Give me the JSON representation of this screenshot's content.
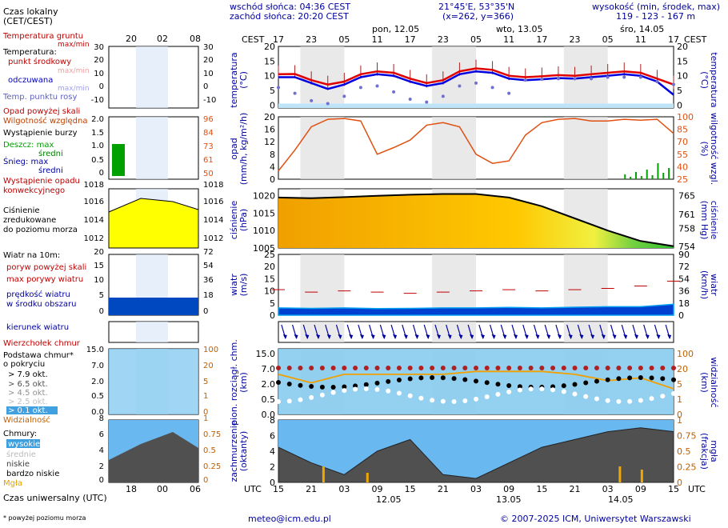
{
  "header": {
    "sunrise": "wschód słońca: 04:36 CEST",
    "sunset": "zachód słońca: 20:20 CEST",
    "coords": "21°45'E, 53°35'N",
    "grid": "(x=262, y=366)",
    "elevation_title": "wysokość (min, środek, max)",
    "elevation_values": "119 - 123 - 167 m",
    "day_labels": [
      "pon, 12.05",
      "wto, 13.05",
      "śro, 14.05"
    ],
    "cest_label": "CEST",
    "cest_hours": [
      "17",
      "23",
      "05",
      "11",
      "17",
      "23",
      "05",
      "11",
      "17",
      "23",
      "05",
      "11",
      "17"
    ],
    "utc_label": "UTC",
    "utc_hours": [
      "15",
      "21",
      "03",
      "09",
      "15",
      "21",
      "03",
      "09",
      "15",
      "21",
      "03",
      "09",
      "15"
    ],
    "bottom_dates": [
      "12.05",
      "13.05",
      "14.05"
    ]
  },
  "legend": {
    "local_time": "Czas lokalny",
    "local_time_sub": "(CET/CEST)",
    "local_hours": [
      "20",
      "02",
      "08"
    ],
    "utc_time": "Czas uniwersalny (UTC)",
    "utc_hours": [
      "18",
      "00",
      "06"
    ],
    "temp": {
      "ground": "Temperatura gruntu",
      "ground_sub": "max/min",
      "title": "Temperatura:",
      "mid": "punkt środkowy",
      "mid_sub": "max/min",
      "felt": "odczuwana",
      "felt_sub": "max/min",
      "dew": "Temp. punktu rosy"
    },
    "precip": {
      "above": "Opad powyżej skali",
      "humidity": "Wilgotność względna",
      "storm": "Wystąpienie burzy",
      "rain": "Deszcz: max",
      "rain_mid": "średni",
      "snow": "Śnieg: max",
      "snow_mid": "średni",
      "occurrence": "Wystąpienie opadu",
      "occurrence2": "konwekcyjnego"
    },
    "pressure": {
      "l1": "Ciśnienie",
      "l2": "zredukowane",
      "l3": "do poziomu morza"
    },
    "wind": {
      "title": "Wiatr na 10m:",
      "gust_above": "poryw powyżej skali",
      "gust_max": "max porywy wiatru",
      "speed": "prędkość wiatru",
      "speed_sub": "w środku obszaru",
      "direction": "kierunek wiatru"
    },
    "clouds": {
      "top": "Wierzchołek chmur",
      "base": "Podstawa chmur*",
      "base_sub": "o pokryciu",
      "okt": [
        "> 7.9 okt.",
        "> 6.5 okt.",
        "> 4.5 okt.",
        "> 2.5 okt.",
        "> 0.1 okt."
      ],
      "visibility": "Widzialność",
      "clouds_title": "Chmury:",
      "high": "wysokie",
      "mid": "średnie",
      "low": "niskie",
      "very_low": "bardzo niskie",
      "fog": "Mgła"
    },
    "footnote": "* powyżej poziomu morza"
  },
  "axis_labels": {
    "temp_left": "temperatura",
    "temp_left_unit": "(°C)",
    "temp_right": "temperatura",
    "temp_right_unit": "(°C)",
    "precip_left": "opad",
    "precip_left_unit": "(mm/h, kg/m²/h)",
    "precip_right": "wilgotność wzgl.",
    "precip_right_unit": "(%)",
    "press_left": "ciśnienie",
    "press_left_unit": "(hPa)",
    "press_right": "ciśnienie",
    "press_right_unit": "(mm Hg)",
    "wind_left": "wiatr",
    "wind_left_unit": "(m/s)",
    "wind_right": "wiatr",
    "wind_right_unit": "(km/h)",
    "cloud_left": "pion. rozciągł. chm.",
    "cloud_left_unit": "(km)",
    "cloud_right": "widzialność",
    "cloud_right_unit": "(km)",
    "cover_left": "zachmurzenie",
    "cover_left_unit": "(oktanty)",
    "cover_right": "mgła",
    "cover_right_unit": "(frakcja)"
  },
  "footer": {
    "email": "meteo@icm.edu.pl",
    "copyright": "© 2007-2025 ICM, Uniwersytet Warszawski"
  },
  "colors": {
    "night_band": "#e0e0e0",
    "temp_red": "#e00000",
    "temp_blue": "#0000e0",
    "dew": "#7070d0",
    "humidity": "#e05010",
    "rain": "#00a000",
    "pressure_fill": "#ffc800",
    "wind_fill": "#0040d0",
    "gust": "#c00000",
    "sky": "#88ccf0",
    "label_blue": "#0000a0",
    "label_orange": "#c06000"
  },
  "chart_data": [
    {
      "type": "line",
      "name": "temperature",
      "ylim": [
        -1,
        20
      ],
      "yticks": [
        0,
        5,
        10,
        15,
        20
      ],
      "x_hours_from_start": [
        0,
        3,
        6,
        9,
        12,
        15,
        18,
        21,
        24,
        27,
        30,
        33,
        36,
        39,
        42,
        45,
        48,
        51,
        54,
        57,
        60,
        63,
        66,
        69,
        72
      ],
      "series": [
        {
          "values": [
            10.5,
            10.6,
            8.5,
            7.0,
            8.0,
            10.5,
            11.5,
            11.0,
            9.0,
            7.5,
            8.5,
            11.5,
            12.5,
            12.0,
            10.0,
            9.5,
            9.8,
            10.2,
            10.0,
            10.5,
            11.0,
            11.5,
            11.0,
            9.0,
            7.0
          ]
        },
        {
          "values": [
            9.5,
            9.5,
            7.5,
            5.5,
            7.0,
            9.5,
            10.5,
            10.0,
            8.0,
            6.5,
            7.5,
            10.5,
            11.5,
            11.0,
            9.0,
            8.5,
            8.8,
            9.2,
            9.0,
            9.5,
            10.0,
            10.5,
            10.0,
            8.0,
            3.5
          ]
        },
        {
          "values": [
            6.0,
            4.0,
            1.5,
            0.5,
            3.0,
            6.0,
            6.5,
            4.5,
            2.0,
            1.0,
            3.0,
            6.5,
            7.5,
            6.0,
            4.0,
            8.5,
            8.8,
            9.0,
            9.0,
            9.0,
            9.5,
            9.5,
            9.5,
            8.0,
            7.0
          ]
        }
      ]
    },
    {
      "type": "line",
      "name": "relative humidity",
      "ylim": [
        25,
        100
      ],
      "yticks": [
        25,
        40,
        55,
        70,
        85,
        100
      ],
      "x_hours_from_start": [
        0,
        3,
        6,
        9,
        12,
        15,
        18,
        21,
        24,
        27,
        30,
        33,
        36,
        39,
        42,
        45,
        48,
        51,
        54,
        57,
        60,
        63,
        66,
        69,
        72
      ],
      "values": [
        35,
        60,
        88,
        97,
        98,
        95,
        55,
        63,
        72,
        90,
        93,
        88,
        55,
        44,
        47,
        78,
        93,
        97,
        98,
        95,
        95,
        97,
        96,
        97,
        80
      ]
    },
    {
      "type": "area",
      "name": "pressure",
      "ylim": [
        1005,
        1022
      ],
      "yticks": [
        1005,
        1010,
        1015,
        1020
      ],
      "x_hours_from_start": [
        0,
        6,
        12,
        18,
        24,
        30,
        36,
        42,
        48,
        54,
        60,
        66,
        72
      ],
      "values": [
        1019.5,
        1019.3,
        1019.6,
        1020.0,
        1020.3,
        1020.5,
        1020.5,
        1019.5,
        1017.0,
        1013.5,
        1010.0,
        1007.0,
        1005.5
      ]
    },
    {
      "type": "area",
      "name": "wind speed",
      "ylim": [
        0,
        25
      ],
      "yticks": [
        0,
        5,
        10,
        15,
        20,
        25
      ],
      "x_hours_from_start": [
        0,
        6,
        12,
        18,
        24,
        30,
        36,
        42,
        48,
        54,
        60,
        66,
        72
      ],
      "values": [
        3.0,
        2.8,
        3.0,
        2.7,
        2.8,
        3.0,
        3.0,
        3.2,
        3.0,
        3.3,
        3.5,
        3.5,
        4.5
      ],
      "gusts": [
        10.5,
        9.5,
        10.0,
        9.5,
        9.0,
        9.5,
        10.0,
        10.5,
        10.0,
        10.5,
        11.0,
        12.0,
        14.0
      ]
    },
    {
      "type": "line",
      "name": "visibility",
      "ylim": [
        0,
        100
      ],
      "yticks": [
        0,
        1,
        2,
        5,
        10,
        20,
        100
      ],
      "x_hours_from_start": [
        0,
        6,
        12,
        18,
        24,
        30,
        36,
        42,
        48,
        54,
        60,
        66,
        72
      ],
      "values": [
        20,
        10,
        20,
        20,
        20,
        20,
        25,
        25,
        25,
        20,
        12,
        15,
        6
      ]
    },
    {
      "type": "area",
      "name": "cloud cover",
      "ylim": [
        0,
        8
      ],
      "yticks": [
        0,
        2,
        4,
        6,
        8
      ],
      "x_hours_from_start": [
        0,
        6,
        12,
        18,
        24,
        30,
        36,
        42,
        48,
        54,
        60,
        66,
        72
      ],
      "values": [
        4.5,
        2.5,
        1.0,
        4.0,
        5.5,
        1.0,
        0.5,
        2.5,
        4.5,
        5.5,
        6.5,
        7.0,
        6.5
      ]
    }
  ]
}
